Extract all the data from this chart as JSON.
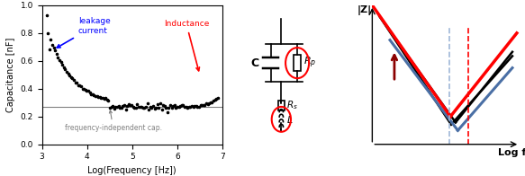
{
  "panel1": {
    "title": "",
    "xlabel": "Log(Frequency [Hz])",
    "ylabel": "Capacitance [nF]",
    "ylim": [
      0.0,
      1.0
    ],
    "xlim": [
      3,
      7
    ],
    "flat_line_y": 0.27,
    "annotation_flat": "frequency-independent cap.",
    "annotation_leakage": "leakage\ncurrent",
    "annotation_inductance": "Inductance",
    "bg_color": "#ffffff"
  },
  "panel3": {
    "xlabel": "Log f",
    "ylabel": "|Z|",
    "line_colors": [
      "#cc0000",
      "#000000",
      "#4a6fa5"
    ],
    "arrow_color": "#8b0000",
    "vline1_color": "#a0b8d8",
    "vline2_color": "#cc0000"
  }
}
